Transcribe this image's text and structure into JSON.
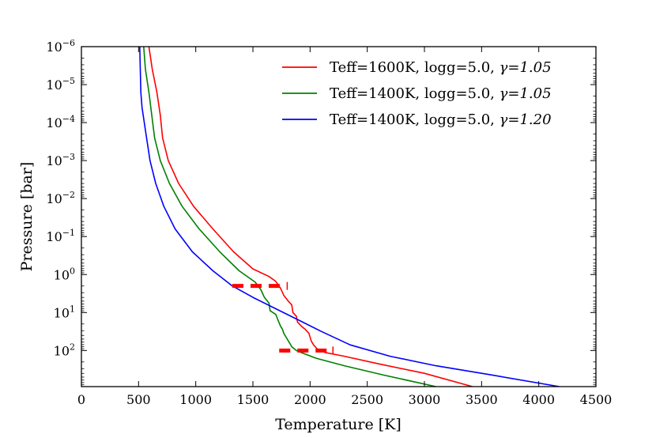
{
  "chart_data": {
    "type": "line",
    "title": "",
    "xlabel": "Temperature [K]",
    "ylabel": "Pressure [bar]",
    "xlim": [
      0,
      4500
    ],
    "ylim_log10": [
      -6,
      2.95
    ],
    "y_inverted": true,
    "y_scale": "log",
    "grid": false,
    "legend_position": "upper-right",
    "x_ticks": [
      0,
      500,
      1000,
      1500,
      2000,
      2500,
      3000,
      3500,
      4000,
      4500
    ],
    "x_tick_labels": [
      "0",
      "500",
      "1000",
      "1500",
      "2000",
      "2500",
      "3000",
      "3500",
      "4000",
      "4500"
    ],
    "y_ticks_log10": [
      -6,
      -5,
      -4,
      -3,
      -2,
      -1,
      0,
      1,
      2
    ],
    "y_tick_mantissa": "10",
    "y_tick_exponents": [
      "−6",
      "−5",
      "−4",
      "−3",
      "−2",
      "−1",
      "0",
      "1",
      "2"
    ],
    "series": [
      {
        "name": "Teff=1600K, logg=5.0, γ=1.05",
        "legend_main": "Teff=1600K, logg=5.0, ",
        "legend_gamma": "γ=1.05",
        "color": "#ff0000",
        "x": [
          590,
          620,
          660,
          690,
          710,
          760,
          850,
          980,
          1150,
          1330,
          1500,
          1640,
          1700,
          1740,
          1770,
          1810,
          1840,
          1850,
          1880,
          1890,
          1920,
          1960,
          1990,
          2010,
          2030,
          2060,
          2130,
          2300,
          2600,
          3000,
          3420
        ],
        "logP": [
          -6,
          -5.4,
          -4.8,
          -4.2,
          -3.6,
          -3.0,
          -2.4,
          -1.8,
          -1.2,
          -0.6,
          -0.15,
          0.05,
          0.18,
          0.35,
          0.55,
          0.7,
          0.8,
          1.0,
          1.1,
          1.25,
          1.35,
          1.45,
          1.55,
          1.75,
          1.85,
          1.95,
          2.05,
          2.15,
          2.35,
          2.6,
          2.95
        ]
      },
      {
        "name": "Teff=1400K, logg=5.0, γ=1.05",
        "legend_main": "Teff=1400K, logg=5.0, ",
        "legend_gamma": "γ=1.05",
        "color": "#008000",
        "x": [
          545,
          560,
          590,
          615,
          640,
          690,
          770,
          880,
          1030,
          1210,
          1380,
          1520,
          1570,
          1600,
          1640,
          1650,
          1700,
          1720,
          1740,
          1760,
          1770,
          1800,
          1820,
          1840,
          1880,
          1920,
          2050,
          2300,
          2650,
          3100
        ],
        "logP": [
          -6,
          -5.4,
          -4.8,
          -4.2,
          -3.6,
          -3.0,
          -2.4,
          -1.8,
          -1.2,
          -0.6,
          -0.1,
          0.2,
          0.4,
          0.6,
          0.75,
          0.95,
          1.05,
          1.2,
          1.35,
          1.45,
          1.55,
          1.7,
          1.8,
          1.9,
          2.0,
          2.05,
          2.2,
          2.4,
          2.65,
          2.95
        ]
      },
      {
        "name": "Teff=1400K, logg=5.0, γ=1.20",
        "legend_main": "Teff=1400K, logg=5.0, ",
        "legend_gamma": "γ=1.20",
        "color": "#0000ff",
        "x": [
          510,
          515,
          520,
          530,
          560,
          600,
          650,
          720,
          820,
          970,
          1150,
          1320,
          1500,
          1700,
          1900,
          2100,
          2350,
          2700,
          3100,
          3600,
          4180
        ],
        "logP": [
          -6,
          -5.4,
          -4.8,
          -4.4,
          -3.8,
          -3.0,
          -2.4,
          -1.8,
          -1.2,
          -0.6,
          -0.1,
          0.3,
          0.6,
          0.9,
          1.2,
          1.5,
          1.85,
          2.15,
          2.4,
          2.65,
          2.95
        ]
      }
    ],
    "dashed_markers": [
      {
        "x_start": 1320,
        "x_end": 1800,
        "logP": 0.3,
        "color": "#ff0000"
      },
      {
        "x_start": 1730,
        "x_end": 2200,
        "logP": 2.0,
        "color": "#ff0000"
      }
    ]
  }
}
